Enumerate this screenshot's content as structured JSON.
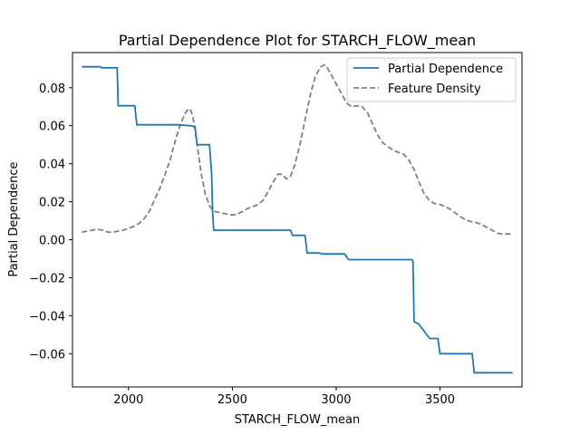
{
  "chart_data": {
    "type": "line",
    "title": "Partial Dependence Plot for STARCH_FLOW_mean",
    "xlabel": "STARCH_FLOW_mean",
    "ylabel": "Partial Dependence",
    "xlim": [
      1730,
      3895
    ],
    "ylim": [
      -0.0775,
      0.0985
    ],
    "xticks": [
      2000,
      2500,
      3000,
      3500
    ],
    "xtick_labels": [
      "2000",
      "2500",
      "3000",
      "3500"
    ],
    "yticks": [
      -0.06,
      -0.04,
      -0.02,
      0.0,
      0.02,
      0.04,
      0.06,
      0.08
    ],
    "ytick_labels": [
      "−0.06",
      "−0.04",
      "−0.02",
      "0.00",
      "0.02",
      "0.04",
      "0.06",
      "0.08"
    ],
    "grid": false,
    "legend_position": "top-right",
    "series": [
      {
        "name": "Partial Dependence",
        "color": "#1f77b4",
        "style": "solid",
        "x": [
          1775,
          1865,
          1870,
          1945,
          1950,
          2030,
          2040,
          2240,
          2290,
          2300,
          2315,
          2320,
          2330,
          2390,
          2400,
          2405,
          2410,
          2780,
          2790,
          2850,
          2860,
          2920,
          2930,
          3040,
          3060,
          3365,
          3370,
          3375,
          3390,
          3395,
          3450,
          3460,
          3490,
          3500,
          3655,
          3665,
          3850
        ],
        "y": [
          0.091,
          0.091,
          0.0905,
          0.0905,
          0.0705,
          0.0705,
          0.0605,
          0.0605,
          0.06,
          0.06,
          0.0595,
          0.0595,
          0.05,
          0.05,
          0.035,
          0.015,
          0.005,
          0.005,
          0.0023,
          0.0023,
          -0.007,
          -0.007,
          -0.0075,
          -0.0075,
          -0.0105,
          -0.0105,
          -0.0115,
          -0.043,
          -0.044,
          -0.044,
          -0.052,
          -0.052,
          -0.052,
          -0.06,
          -0.06,
          -0.07,
          -0.07
        ]
      },
      {
        "name": "Feature Density",
        "color": "#808080",
        "style": "dashed",
        "x": [
          1775,
          1800,
          1825,
          1850,
          1875,
          1900,
          1925,
          1950,
          1975,
          2000,
          2025,
          2050,
          2075,
          2100,
          2125,
          2150,
          2175,
          2200,
          2225,
          2250,
          2275,
          2290,
          2300,
          2315,
          2330,
          2350,
          2370,
          2390,
          2410,
          2430,
          2450,
          2475,
          2500,
          2525,
          2550,
          2575,
          2600,
          2625,
          2650,
          2675,
          2700,
          2720,
          2740,
          2760,
          2780,
          2800,
          2825,
          2850,
          2875,
          2900,
          2925,
          2945,
          2960,
          2975,
          3000,
          3025,
          3050,
          3075,
          3100,
          3125,
          3150,
          3175,
          3200,
          3225,
          3250,
          3275,
          3300,
          3325,
          3350,
          3375,
          3400,
          3425,
          3450,
          3475,
          3500,
          3525,
          3550,
          3575,
          3600,
          3625,
          3650,
          3675,
          3700,
          3725,
          3750,
          3775,
          3800,
          3825,
          3850
        ],
        "y": [
          0.004,
          0.0045,
          0.005,
          0.0055,
          0.005,
          0.004,
          0.004,
          0.0045,
          0.005,
          0.006,
          0.007,
          0.0085,
          0.011,
          0.015,
          0.021,
          0.027,
          0.034,
          0.042,
          0.052,
          0.061,
          0.067,
          0.069,
          0.068,
          0.062,
          0.05,
          0.035,
          0.024,
          0.018,
          0.015,
          0.0145,
          0.014,
          0.0135,
          0.013,
          0.0135,
          0.015,
          0.0165,
          0.0175,
          0.0185,
          0.021,
          0.026,
          0.031,
          0.0345,
          0.0345,
          0.032,
          0.0335,
          0.039,
          0.05,
          0.063,
          0.076,
          0.086,
          0.091,
          0.092,
          0.09,
          0.087,
          0.082,
          0.077,
          0.072,
          0.07,
          0.0705,
          0.07,
          0.067,
          0.061,
          0.055,
          0.051,
          0.049,
          0.047,
          0.046,
          0.045,
          0.042,
          0.037,
          0.03,
          0.024,
          0.0205,
          0.019,
          0.0185,
          0.0175,
          0.016,
          0.014,
          0.012,
          0.0105,
          0.0095,
          0.009,
          0.008,
          0.0065,
          0.005,
          0.0035,
          0.003,
          0.003,
          0.003
        ]
      }
    ]
  }
}
